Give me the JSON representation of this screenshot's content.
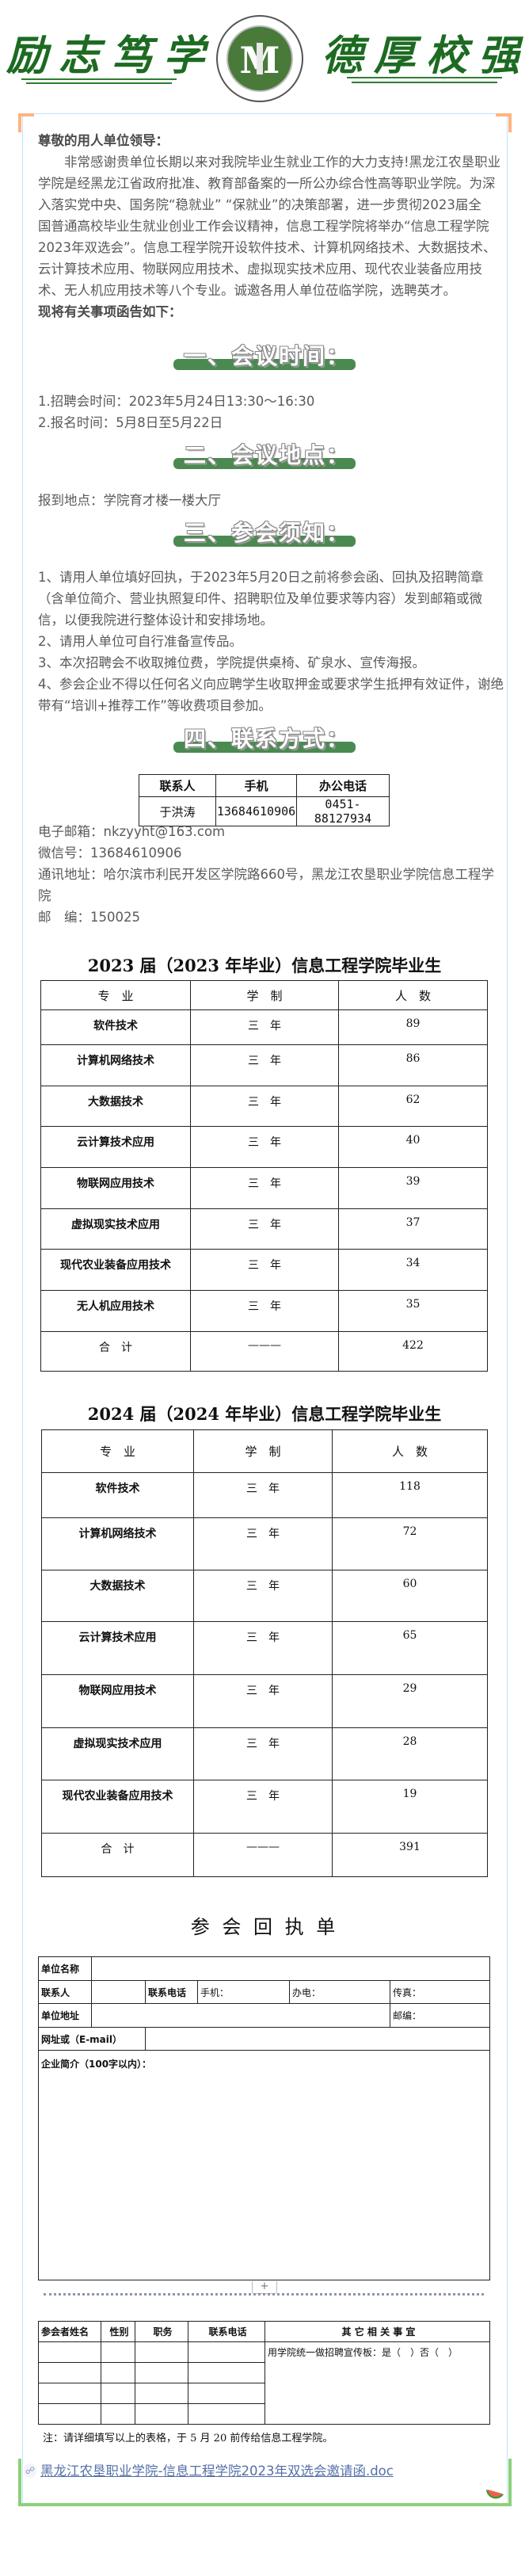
{
  "banner": {
    "motto_left": "励志笃学",
    "motto_right": "德厚校强",
    "logo_text_top": "黑龙江农垦职业学院",
    "logo_text_bottom": "Heilongjiang Agricultural Reclamation Vocational College",
    "logo_letter": "M",
    "brand_color": "#1d6b22"
  },
  "intro": {
    "greeting": "尊敬的用人单位领导：",
    "lines": [
      "　　非常感谢贵单位长期以来对我院毕业生就业工作的大力支持!黑龙江农垦职业",
      "学院是经黑龙江省政府批准、教育部备案的一所公办综合性高等职业学院。为深",
      "入落实党中央、国务院“稳就业” “保就业”的决策部署，进一步贯彻2023届全",
      "国普通高校毕业生就业创业工作会议精神，信息工程学院将举办“信息工程学院",
      "2023年双选会”。信息工程学院开设软件技术、计算机网络技术、大数据技术、",
      "云计算技术应用、物联网应用技术、虚拟现实技术应用、现代农业装备应用技",
      "术、无人机应用技术等八个专业。诚邀各用人单位莅临学院，选聘英才。"
    ],
    "lead": "现将有关事项函告如下："
  },
  "sections": {
    "time": {
      "heading": "一、会议时间：",
      "items": [
        "1.招聘会时间：2023年5月24日13:30～16:30",
        "2.报名时间：5月8日至5月22日"
      ]
    },
    "place": {
      "heading": "二、会议地点：",
      "items": [
        "报到地点：学院育才楼一楼大厅"
      ]
    },
    "notice": {
      "heading": "三、参会须知：",
      "lines": [
        "1、请用人单位填好回执，于2023年5月20日之前将参会函、回执及招聘简章",
        "（含单位简介、营业执照复印件、招聘职位及单位要求等内容）发到邮箱或微",
        "信，以便我院进行整体设计和安排场地。",
        "2、请用人单位可自行准备宣传品。",
        "3、本次招聘会不收取摊位费，学院提供桌椅、矿泉水、宣传海报。",
        "4、参会企业不得以任何名义向应聘学生收取押金或要求学生抵押有效证件，谢绝",
        "带有“培训+推荐工作”等收费项目参加。"
      ]
    },
    "contact": {
      "heading": "四、联系方式：",
      "table_headers": [
        "联系人",
        "手机",
        "办公电话"
      ],
      "table_row": [
        "于洪涛",
        "13684610906",
        "0451-88127934"
      ],
      "email": "电子邮箱：nkzyyht@163.com",
      "wechat": "微信号：13684610906",
      "address_1": "通讯地址：哈尔滨市利民开发区学院路660号，黑龙江农垦职业学院信息工程学",
      "address_2": "院",
      "postcode": "邮　编：150025"
    },
    "heading_bar_color": "#4a8a50"
  },
  "grads_2023": {
    "title": "2023 届（2023 年毕业）信息工程学院毕业生",
    "headers": [
      "专　业",
      "学　制",
      "人　数"
    ],
    "rows": [
      [
        "软件技术",
        "三　年",
        "89"
      ],
      [
        "计算机网络技术",
        "三　年",
        "86"
      ],
      [
        "大数据技术",
        "三　年",
        "62"
      ],
      [
        "云计算技术应用",
        "三　年",
        "40"
      ],
      [
        "物联网应用技术",
        "三　年",
        "39"
      ],
      [
        "虚拟现实技术应用",
        "三　年",
        "37"
      ],
      [
        "现代农业装备应用技术",
        "三　年",
        "34"
      ],
      [
        "无人机应用技术",
        "三　年",
        "35"
      ]
    ],
    "total": [
      "合　计",
      "———",
      "422"
    ]
  },
  "grads_2024": {
    "title": "2024 届（2024 年毕业）信息工程学院毕业生",
    "headers": [
      "专　业",
      "学　制",
      "人　数"
    ],
    "rows": [
      [
        "软件技术",
        "三　年",
        "118"
      ],
      [
        "计算机网络技术",
        "三　年",
        "72"
      ],
      [
        "大数据技术",
        "三　年",
        "60"
      ],
      [
        "云计算技术应用",
        "三　年",
        "65"
      ],
      [
        "物联网应用技术",
        "三　年",
        "29"
      ],
      [
        "虚拟现实技术应用",
        "三　年",
        "28"
      ],
      [
        "现代农业装备应用技术",
        "三　年",
        "19"
      ]
    ],
    "total": [
      "合　计",
      "———",
      "391"
    ]
  },
  "reply_form": {
    "title": "参 会 回 执 单",
    "unit_name": "单位名称",
    "contact_person": "联系人",
    "contact_phone": "联系电话",
    "mobile": "手机：",
    "office_phone": "办电：",
    "fax": "传真：",
    "unit_address": "单位地址",
    "postcode": "邮编：",
    "website": "网址或（E-mail）",
    "intro": "企业简介（100字以内）：",
    "add_button": "+",
    "attendee_headers": [
      "参会者姓名",
      "性别",
      "职务",
      "联系电话",
      "其 它 相 关 事 宜"
    ],
    "other_matters": "用学院统一做招聘宣传板：是（　）否（　）",
    "note": "注：请详细填写以上的表格，于 5 月 20 前传给信息工程学院。"
  },
  "attachment": {
    "icon": "link-icon",
    "label": "黑龙江农垦职业学院-信息工程学院2023年双选会邀请函.doc",
    "color": "#5470a8"
  }
}
